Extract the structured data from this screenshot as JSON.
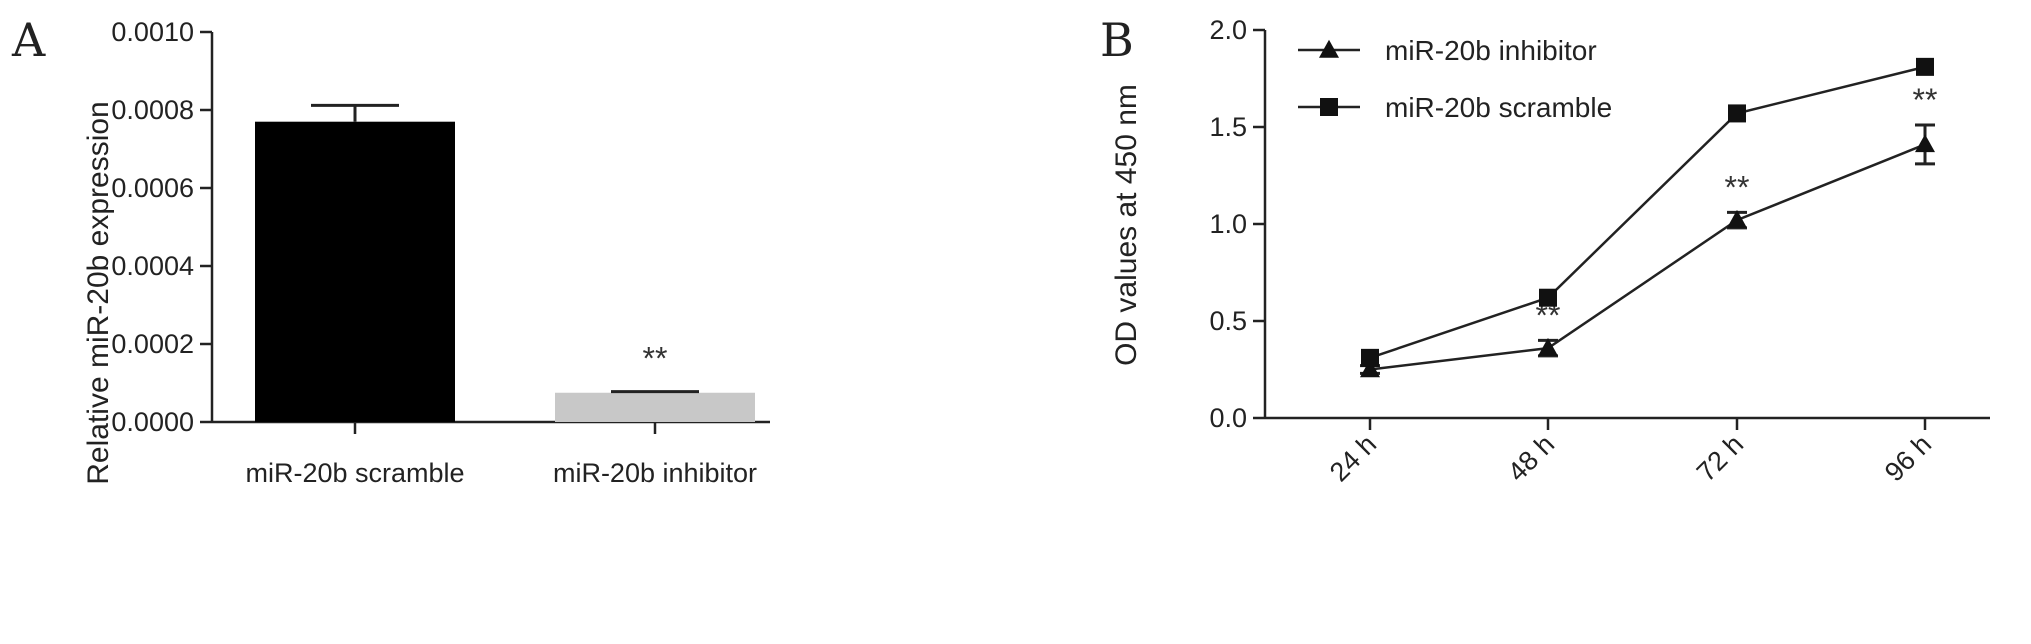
{
  "panels": [
    {
      "letter": "A"
    },
    {
      "letter": "B"
    }
  ],
  "chart_data": [
    {
      "type": "bar",
      "panel": "A",
      "categories": [
        "miR-20b scramble",
        "miR-20b inhibitor"
      ],
      "values": [
        0.00077,
        7.5e-05
      ],
      "errors": [
        4.2e-05,
        3e-06
      ],
      "colors": [
        "#000000",
        "#c8c8c8"
      ],
      "annotations": [
        "",
        "**"
      ],
      "ylabel": "Relative miR-20b expression",
      "ylim": [
        0,
        0.001
      ],
      "yticks": [
        0,
        0.0002,
        0.0004,
        0.0006,
        0.0008,
        0.001
      ],
      "ytick_labels": [
        "0.0000",
        "0.0002",
        "0.0004",
        "0.0006",
        "0.0008",
        "0.0010"
      ]
    },
    {
      "type": "line",
      "panel": "B",
      "categories": [
        "24 h",
        "48 h",
        "72 h",
        "96 h"
      ],
      "ylabel": "OD values at 450 nm",
      "ylim": [
        0,
        2.0
      ],
      "yticks": [
        0,
        0.5,
        1.0,
        1.5,
        2.0
      ],
      "ytick_labels": [
        "0.0",
        "0.5",
        "1.0",
        "1.5",
        "2.0"
      ],
      "legend_position": "top-left",
      "series": [
        {
          "name": "miR-20b inhibitor",
          "marker": "triangle",
          "values": [
            0.25,
            0.36,
            1.02,
            1.41
          ],
          "errors": [
            0.02,
            0.04,
            0.04,
            0.1
          ],
          "annotations": [
            "",
            "**",
            "**",
            "**"
          ]
        },
        {
          "name": "miR-20b scramble",
          "marker": "square",
          "values": [
            0.31,
            0.62,
            1.57,
            1.81
          ],
          "errors": [
            0.01,
            0.01,
            0.01,
            0.01
          ],
          "annotations": [
            "",
            "",
            "",
            ""
          ]
        }
      ]
    }
  ]
}
